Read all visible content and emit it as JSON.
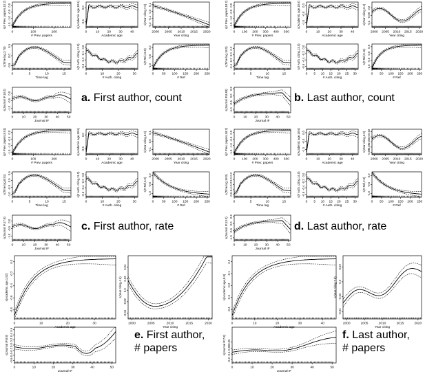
{
  "figure": {
    "captions": [
      {
        "letter": "a.",
        "text": "First author, count"
      },
      {
        "letter": "b.",
        "text": "Last author, count"
      },
      {
        "letter": "c.",
        "text": "First author, rate"
      },
      {
        "letter": "d.",
        "text": "Last author, rate"
      },
      {
        "letter": "e.",
        "text": "First author,\n# papers"
      },
      {
        "letter": "f.",
        "text": "Last author,\n# papers"
      }
    ]
  },
  "chart_data": [
    {
      "panel": "a",
      "id": "a1",
      "type": "line",
      "xlabel": "# Prev. papers",
      "ylabel": "s(# Prev. papers,10.2)",
      "xticks": [
        0,
        100,
        200
      ],
      "yticks": [
        -1.5,
        -1.0,
        -0.5,
        0.0
      ],
      "xlim": [
        0,
        280
      ],
      "ylim": [
        -1.7,
        0.25
      ],
      "shape": "log",
      "rug": "dense-left"
    },
    {
      "panel": "a",
      "id": "a2",
      "type": "line",
      "xlabel": "Academic age",
      "ylabel": "s(Academic age,18.6)",
      "xticks": [
        0,
        10,
        20,
        30,
        40
      ],
      "yticks": [
        -0.5,
        0.0
      ],
      "xlim": [
        0,
        45
      ],
      "ylim": [
        -0.7,
        0.2
      ],
      "shape": "step",
      "rug": "uniform"
    },
    {
      "panel": "a",
      "id": "a3",
      "type": "line",
      "xlabel": "Year citing",
      "ylabel": "s(Year citing,7.6)",
      "xticks": [
        2000,
        2005,
        2010,
        2015,
        2020
      ],
      "yticks": [
        -0.2,
        -0.1,
        0.0,
        0.1
      ],
      "xlim": [
        1999,
        2021
      ],
      "ylim": [
        -0.24,
        0.14
      ],
      "shape": "decline",
      "rug": "uniform"
    },
    {
      "panel": "a",
      "id": "a4",
      "type": "line",
      "xlabel": "Time lag",
      "ylabel": "s(Time lag,3.70)",
      "xticks": [
        0,
        5,
        10,
        15
      ],
      "yticks": [
        -0.5,
        0.0,
        0.5
      ],
      "xlim": [
        0,
        17
      ],
      "ylim": [
        -0.7,
        0.6
      ],
      "shape": "hump",
      "rug": "uniform"
    },
    {
      "panel": "a",
      "id": "a5",
      "type": "line",
      "xlabel": "# Auth. citing",
      "ylabel": "s(# Auth. citing,13.0)",
      "xticks": [
        0,
        10,
        20,
        30
      ],
      "yticks": [
        -0.3,
        -0.2,
        -0.1,
        0.0
      ],
      "xlim": [
        0,
        32
      ],
      "ylim": [
        -0.35,
        0.05
      ],
      "shape": "dip",
      "rug": "uniform"
    },
    {
      "panel": "a",
      "id": "a6",
      "type": "line",
      "xlabel": "# Ref",
      "ylabel": "s(# Ref,13.0)",
      "xticks": [
        0,
        50,
        100,
        150,
        200,
        250
      ],
      "yticks": [
        -1.0,
        -0.5,
        0.0
      ],
      "xlim": [
        0,
        260
      ],
      "ylim": [
        -1.2,
        0.2
      ],
      "shape": "log",
      "rug": "dense-left"
    },
    {
      "panel": "a",
      "id": "a7",
      "type": "line",
      "xlabel": "Journal IF",
      "ylabel": "s(Journal IF,18.0)",
      "xticks": [
        0,
        10,
        20,
        30,
        40,
        50
      ],
      "yticks": [
        -1.0,
        -0.5,
        0.0
      ],
      "xlim": [
        0,
        52
      ],
      "ylim": [
        -1.3,
        0.4
      ],
      "shape": "jif-a",
      "rug": "sparse-right"
    },
    {
      "panel": "b",
      "id": "b1",
      "type": "line",
      "xlabel": "# Prev. papers",
      "ylabel": "s(# Prev. papers,18.2)",
      "xticks": [
        0,
        100,
        200,
        300,
        400,
        500
      ],
      "yticks": [
        -1.5,
        -1.0,
        -0.5,
        0.0
      ],
      "xlim": [
        0,
        540
      ],
      "ylim": [
        -1.7,
        0.25
      ],
      "shape": "log",
      "rug": "dense-left"
    },
    {
      "panel": "b",
      "id": "b2",
      "type": "line",
      "xlabel": "Academic age",
      "ylabel": "s(Academic age,18.6)",
      "xticks": [
        0,
        10,
        20,
        30,
        40
      ],
      "yticks": [
        -1.0,
        -0.5,
        0.0
      ],
      "xlim": [
        0,
        45
      ],
      "ylim": [
        -1.3,
        0.2
      ],
      "shape": "step",
      "rug": "uniform"
    },
    {
      "panel": "b",
      "id": "b3",
      "type": "line",
      "xlabel": "Year citing",
      "ylabel": "s(Year citing,3.4)",
      "xticks": [
        2000,
        2005,
        2010,
        2015,
        2020
      ],
      "yticks": [
        -0.1,
        -0.05,
        0.0
      ],
      "xlim": [
        1999,
        2021
      ],
      "ylim": [
        -0.13,
        0.04
      ],
      "shape": "wave",
      "rug": "uniform"
    },
    {
      "panel": "b",
      "id": "b4",
      "type": "line",
      "xlabel": "Time lag",
      "ylabel": "s(Time lag,18.0)",
      "xticks": [
        0,
        5,
        10,
        15
      ],
      "yticks": [
        -0.4,
        -0.2,
        0.0,
        0.2
      ],
      "xlim": [
        0,
        17
      ],
      "ylim": [
        -0.5,
        0.35
      ],
      "shape": "hump",
      "rug": "uniform"
    },
    {
      "panel": "b",
      "id": "b5",
      "type": "line",
      "xlabel": "# Auth. citing",
      "ylabel": "s(# Auth. citing,13.0)",
      "xticks": [
        0,
        5,
        10,
        15,
        20,
        25,
        30
      ],
      "yticks": [
        -0.6,
        -0.4,
        -0.2,
        0.0
      ],
      "xlim": [
        0,
        32
      ],
      "ylim": [
        -0.7,
        0.1
      ],
      "shape": "dip",
      "rug": "uniform"
    },
    {
      "panel": "b",
      "id": "b6",
      "type": "line",
      "xlabel": "# Ref",
      "ylabel": "s(# Ref,9.11)",
      "xticks": [
        0,
        50,
        100,
        150,
        200,
        250
      ],
      "yticks": [
        -1.0,
        -0.5,
        0.0,
        0.5
      ],
      "xlim": [
        0,
        260
      ],
      "ylim": [
        -1.2,
        0.7
      ],
      "shape": "log",
      "rug": "dense-left"
    },
    {
      "panel": "b",
      "id": "b7",
      "type": "line",
      "xlabel": "Journal IF",
      "ylabel": "s(Journal IF,8.83)",
      "xticks": [
        0,
        10,
        20,
        30,
        40,
        50
      ],
      "yticks": [
        -1.0,
        -0.5,
        0.0,
        0.5
      ],
      "xlim": [
        0,
        52
      ],
      "ylim": [
        -1.2,
        0.6
      ],
      "shape": "jif-b",
      "rug": "sparse-right"
    },
    {
      "panel": "c",
      "id": "c1",
      "type": "line",
      "xlabel": "# Prev. papers",
      "ylabel": "s(# Prev. papers,8.51)",
      "xticks": [
        0,
        100,
        200
      ],
      "yticks": [
        -1.5,
        -1.0,
        -0.5,
        0.0
      ],
      "xlim": [
        0,
        280
      ],
      "ylim": [
        -1.7,
        0.25
      ],
      "shape": "log",
      "rug": "dense-left"
    },
    {
      "panel": "c",
      "id": "c2",
      "type": "line",
      "xlabel": "Academic age",
      "ylabel": "s(Academic age,18.6)",
      "xticks": [
        0,
        10,
        20,
        30,
        40
      ],
      "yticks": [
        -0.5,
        0.0
      ],
      "xlim": [
        0,
        45
      ],
      "ylim": [
        -0.7,
        0.2
      ],
      "shape": "step",
      "rug": "uniform"
    },
    {
      "panel": "c",
      "id": "c3",
      "type": "line",
      "xlabel": "Year citing",
      "ylabel": "s(Year citing,6.6)",
      "xticks": [
        2000,
        2005,
        2010,
        2015,
        2020
      ],
      "yticks": [
        -0.1,
        0.0,
        0.1
      ],
      "xlim": [
        1999,
        2021
      ],
      "ylim": [
        -0.16,
        0.14
      ],
      "shape": "decline",
      "rug": "uniform"
    },
    {
      "panel": "c",
      "id": "c4",
      "type": "line",
      "xlabel": "Time lag",
      "ylabel": "s(Time lag,8.51)",
      "xticks": [
        0,
        5,
        10,
        15
      ],
      "yticks": [
        -1.0,
        -0.5,
        0.0,
        0.5
      ],
      "xlim": [
        0,
        17
      ],
      "ylim": [
        -1.2,
        0.6
      ],
      "shape": "hump",
      "rug": "uniform"
    },
    {
      "panel": "c",
      "id": "c5",
      "type": "line",
      "xlabel": "# Auth. citing",
      "ylabel": "s(# Auth. citing,11.0)",
      "xticks": [
        0,
        10,
        20,
        30
      ],
      "yticks": [
        -0.6,
        -0.4,
        -0.2,
        0.0
      ],
      "xlim": [
        0,
        32
      ],
      "ylim": [
        -0.7,
        0.1
      ],
      "shape": "dip",
      "rug": "uniform"
    },
    {
      "panel": "c",
      "id": "c6",
      "type": "line",
      "xlabel": "# Ref",
      "ylabel": "s(# Ref,5.0)",
      "xticks": [
        0,
        50,
        100,
        150,
        200,
        250
      ],
      "yticks": [
        -1.0,
        -0.5,
        0.0
      ],
      "xlim": [
        0,
        260
      ],
      "ylim": [
        -1.2,
        0.2
      ],
      "shape": "decay",
      "rug": "dense-left"
    },
    {
      "panel": "c",
      "id": "c7",
      "type": "line",
      "xlabel": "Journal IF",
      "ylabel": "s(Journal IF,17.9)",
      "xticks": [
        0,
        10,
        20,
        30,
        40,
        50
      ],
      "yticks": [
        -1.0,
        -0.5,
        0.0
      ],
      "xlim": [
        0,
        52
      ],
      "ylim": [
        -1.3,
        0.4
      ],
      "shape": "jif-a",
      "rug": "sparse-right"
    },
    {
      "panel": "d",
      "id": "d1",
      "type": "line",
      "xlabel": "# Prev. papers",
      "ylabel": "s(# Prev. papers,18.2)",
      "xticks": [
        0,
        100,
        200,
        300,
        400,
        500
      ],
      "yticks": [
        -1.5,
        -1.0,
        -0.5,
        0.0
      ],
      "xlim": [
        0,
        540
      ],
      "ylim": [
        -1.7,
        0.25
      ],
      "shape": "log",
      "rug": "dense-left"
    },
    {
      "panel": "d",
      "id": "d2",
      "type": "line",
      "xlabel": "Academic age",
      "ylabel": "s(Academic age,18.6)",
      "xticks": [
        0,
        10,
        20,
        30,
        40
      ],
      "yticks": [
        -1.0,
        -0.5,
        0.0
      ],
      "xlim": [
        0,
        45
      ],
      "ylim": [
        -1.3,
        0.2
      ],
      "shape": "step",
      "rug": "uniform"
    },
    {
      "panel": "d",
      "id": "d3",
      "type": "line",
      "xlabel": "Year citing",
      "ylabel": "s(Year citing,3.9)",
      "xticks": [
        2000,
        2005,
        2010,
        2015,
        2020
      ],
      "yticks": [
        -0.06,
        -0.04,
        -0.02,
        0.0,
        0.02
      ],
      "xlim": [
        1999,
        2021
      ],
      "ylim": [
        -0.07,
        0.03
      ],
      "shape": "wave",
      "rug": "uniform"
    },
    {
      "panel": "d",
      "id": "d4",
      "type": "line",
      "xlabel": "Time lag",
      "ylabel": "s(Time lag,18.0)",
      "xticks": [
        0,
        5,
        10,
        15
      ],
      "yticks": [
        -0.6,
        -0.4,
        -0.2,
        0.0,
        0.2
      ],
      "xlim": [
        0,
        17
      ],
      "ylim": [
        -0.7,
        0.3
      ],
      "shape": "hump",
      "rug": "uniform"
    },
    {
      "panel": "d",
      "id": "d5",
      "type": "line",
      "xlabel": "# Auth. citing",
      "ylabel": "s(# Auth. citing,14.0)",
      "xticks": [
        0,
        5,
        10,
        15,
        20,
        25,
        30
      ],
      "yticks": [
        -0.6,
        -0.4,
        -0.2,
        0.0
      ],
      "xlim": [
        0,
        32
      ],
      "ylim": [
        -0.7,
        0.1
      ],
      "shape": "dip",
      "rug": "uniform"
    },
    {
      "panel": "d",
      "id": "d6",
      "type": "line",
      "xlabel": "# Ref",
      "ylabel": "s(# Ref,2.9)",
      "xticks": [
        0,
        50,
        100,
        150,
        200,
        250
      ],
      "yticks": [
        -1.0,
        -0.5,
        0.0
      ],
      "xlim": [
        0,
        260
      ],
      "ylim": [
        -1.2,
        0.2
      ],
      "shape": "decay",
      "rug": "dense-left"
    },
    {
      "panel": "d",
      "id": "d7",
      "type": "line",
      "xlabel": "Journal IF",
      "ylabel": "s(Journal IF,13.0)",
      "xticks": [
        0,
        10,
        20,
        30,
        40,
        50
      ],
      "yticks": [
        -1.0,
        -0.5,
        0.0,
        0.5
      ],
      "xlim": [
        0,
        52
      ],
      "ylim": [
        -1.2,
        0.6
      ],
      "shape": "jif-b",
      "rug": "sparse-right"
    },
    {
      "panel": "e",
      "id": "e1",
      "type": "line",
      "xlabel": "Academic age",
      "ylabel": "s(Academic age,1.52)",
      "xticks": [
        0,
        10,
        20,
        30
      ],
      "yticks": [
        -0.8,
        -0.6,
        -0.4,
        -0.2,
        0.0
      ],
      "xlim": [
        0,
        38
      ],
      "ylim": [
        -0.95,
        0.1
      ],
      "shape": "log",
      "rug": "uniform"
    },
    {
      "panel": "e",
      "id": "e2",
      "type": "line",
      "xlabel": "Year citing",
      "ylabel": "s(Year citing,4.6)",
      "xticks": [
        2000,
        2005,
        2010,
        2015,
        2020
      ],
      "yticks": [
        -0.04,
        -0.02,
        0.0,
        0.02,
        0.04
      ],
      "xlim": [
        1999,
        2021
      ],
      "ylim": [
        -0.05,
        0.06
      ],
      "shape": "u",
      "rug": "uniform"
    },
    {
      "panel": "e",
      "id": "e3",
      "type": "line",
      "xlabel": "Journal IF",
      "ylabel": "s(Journal IF,8.9)",
      "xticks": [
        0,
        10,
        20,
        30,
        40,
        50
      ],
      "yticks": [
        -0.6,
        -0.4,
        -0.2,
        0.0,
        0.2,
        0.4,
        0.6
      ],
      "xlim": [
        0,
        52
      ],
      "ylim": [
        -0.7,
        0.7
      ],
      "shape": "jif-e",
      "rug": "sparse-right"
    },
    {
      "panel": "f",
      "id": "f1",
      "type": "line",
      "xlabel": "Academic age",
      "ylabel": "s(Academic age,8.8)",
      "xticks": [
        0,
        10,
        20,
        30,
        40
      ],
      "yticks": [
        -0.4,
        -0.3,
        -0.2,
        -0.1,
        0.0
      ],
      "xlim": [
        0,
        46
      ],
      "ylim": [
        -0.48,
        0.05
      ],
      "shape": "log",
      "rug": "uniform"
    },
    {
      "panel": "f",
      "id": "f2",
      "type": "line",
      "xlabel": "Year citing",
      "ylabel": "s(Year citing,7.8)",
      "xticks": [
        2000,
        2005,
        2010,
        2015,
        2020
      ],
      "yticks": [
        -0.04,
        -0.02,
        0.0,
        0.02
      ],
      "xlim": [
        1999,
        2021
      ],
      "ylim": [
        -0.05,
        0.035
      ],
      "shape": "vwave",
      "rug": "uniform"
    },
    {
      "panel": "f",
      "id": "f3",
      "type": "line",
      "xlabel": "Journal IF",
      "ylabel": "s(Journal IF,7.8)",
      "xticks": [
        0,
        10,
        20,
        30,
        40,
        50
      ],
      "yticks": [
        -0.25,
        -0.15,
        -0.05,
        0.05
      ],
      "xlim": [
        0,
        52
      ],
      "ylim": [
        -0.3,
        0.3
      ],
      "shape": "jif-f",
      "rug": "sparse-right"
    }
  ]
}
